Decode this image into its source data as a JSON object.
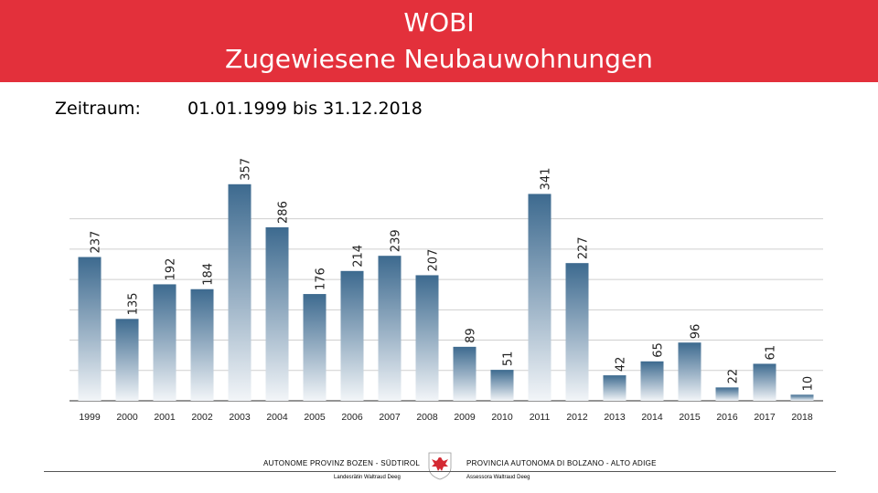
{
  "header": {
    "title_line1": "WOBI",
    "title_line2": "Zugewiesene Neubauwohnungen"
  },
  "period": {
    "label": "Zeitraum:",
    "value": "01.01.1999 bis 31.12.2018"
  },
  "chart_data": {
    "type": "bar",
    "title": "Zugewiesene Neubauwohnungen",
    "categories": [
      "1999",
      "2000",
      "2001",
      "2002",
      "2003",
      "2004",
      "2005",
      "2006",
      "2007",
      "2008",
      "2009",
      "2010",
      "2011",
      "2012",
      "2013",
      "2014",
      "2015",
      "2016",
      "2017",
      "2018"
    ],
    "values": [
      237,
      135,
      192,
      184,
      357,
      286,
      176,
      214,
      239,
      207,
      89,
      51,
      341,
      227,
      42,
      65,
      96,
      22,
      61,
      10
    ],
    "xlabel": "",
    "ylabel": "",
    "ylim": [
      0,
      450
    ],
    "grid": true,
    "legend": "none"
  },
  "footer": {
    "left_title": "AUTONOME PROVINZ BOZEN - SÜDTIROL",
    "left_subtitle": "Landesrätin Waltraud Deeg",
    "right_title": "PROVINCIA AUTONOMA DI BOLZANO - ALTO ADIGE",
    "right_subtitle": "Assessora Waltraud Deeg"
  },
  "colors": {
    "header": "#e3303b",
    "bar_top": "#3d6a8f",
    "bar_bottom": "#f2f5f8"
  }
}
